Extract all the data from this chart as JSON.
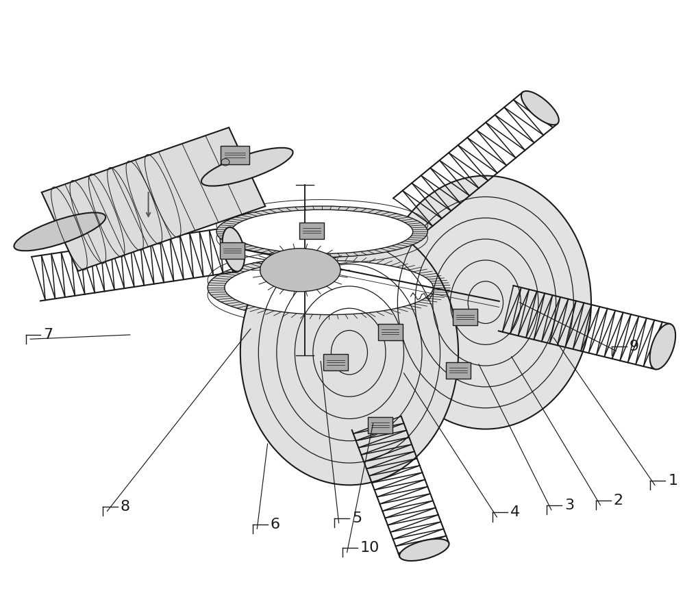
{
  "background_color": "#ffffff",
  "line_color": "#1a1a1a",
  "label_color": "#1a1a1a",
  "figsize": [
    10.0,
    8.66
  ],
  "dpi": 100,
  "label_fontsize": 16,
  "line_width": 1.0,
  "labels": {
    "1": {
      "lpos": [
        0.952,
        0.172
      ],
      "apos": [
        0.81,
        0.43
      ],
      "bracket_dir": "left"
    },
    "2": {
      "lpos": [
        0.872,
        0.138
      ],
      "apos": [
        0.748,
        0.398
      ],
      "bracket_dir": "left"
    },
    "3": {
      "lpos": [
        0.8,
        0.13
      ],
      "apos": [
        0.7,
        0.385
      ],
      "bracket_dir": "left"
    },
    "4": {
      "lpos": [
        0.72,
        0.118
      ],
      "apos": [
        0.59,
        0.37
      ],
      "bracket_dir": "left"
    },
    "5": {
      "lpos": [
        0.488,
        0.108
      ],
      "apos": [
        0.468,
        0.39
      ],
      "bracket_dir": "left"
    },
    "6": {
      "lpos": [
        0.368,
        0.098
      ],
      "apos": [
        0.39,
        0.25
      ],
      "bracket_dir": "left"
    },
    "7": {
      "lpos": [
        0.035,
        0.42
      ],
      "apos": [
        0.188,
        0.435
      ],
      "bracket_dir": "right"
    },
    "8": {
      "lpos": [
        0.148,
        0.128
      ],
      "apos": [
        0.365,
        0.445
      ],
      "bracket_dir": "left"
    },
    "9": {
      "lpos": [
        0.895,
        0.4
      ],
      "apos": [
        0.76,
        0.49
      ],
      "bracket_dir": "left"
    },
    "10": {
      "lpos": [
        0.5,
        0.058
      ],
      "apos": [
        0.545,
        0.285
      ],
      "bracket_dir": "left"
    }
  }
}
